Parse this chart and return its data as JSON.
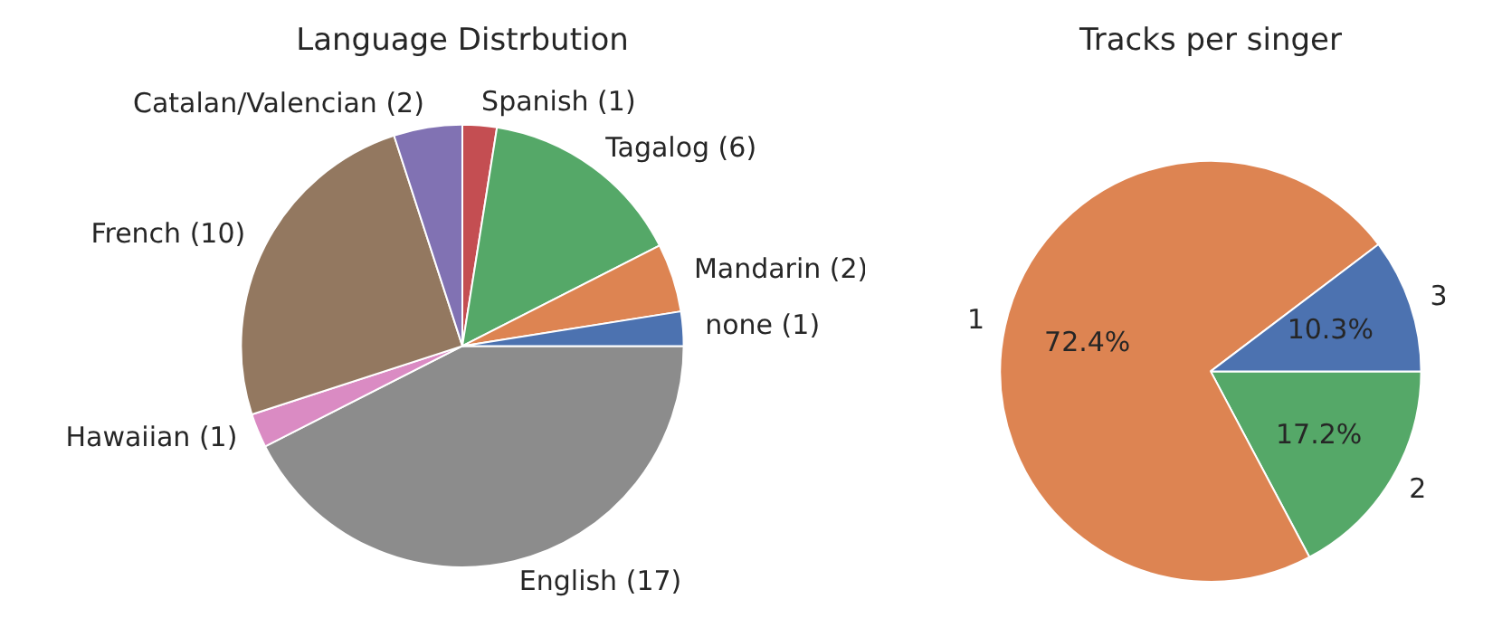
{
  "chart_data": [
    {
      "type": "pie",
      "title": "Language Distrbution",
      "categories": [
        "none (1)",
        "Mandarin (2)",
        "Tagalog (6)",
        "Spanish (1)",
        "Catalan/Valencian (2)",
        "French (10)",
        "Hawaiian (1)",
        "English (17)"
      ],
      "values": [
        1,
        2,
        6,
        1,
        2,
        10,
        1,
        17
      ],
      "colors": [
        "#4c72b0",
        "#dd8452",
        "#55a868",
        "#c44e52",
        "#8172b3",
        "#937860",
        "#da8bc3",
        "#8c8c8c"
      ],
      "legend": false
    },
    {
      "type": "pie",
      "title": "Tracks per singer",
      "categories": [
        "3",
        "1",
        "2"
      ],
      "values": [
        10.3,
        72.4,
        17.2
      ],
      "value_labels": [
        "10.3%",
        "72.4%",
        "17.2%"
      ],
      "colors": [
        "#4c72b0",
        "#dd8452",
        "#55a868"
      ],
      "legend": false
    }
  ]
}
